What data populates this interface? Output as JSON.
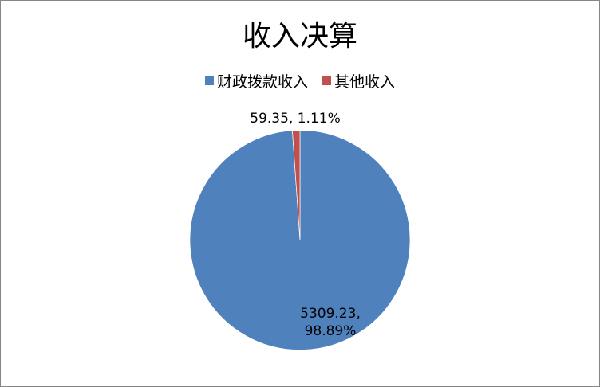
{
  "chart_data": {
    "type": "pie",
    "title": "收入决算",
    "legend_position": "top",
    "slices": [
      {
        "name": "财政拨款收入",
        "value": 5309.23,
        "percent": "98.89%",
        "label": "5309.23, 98.89%",
        "color": "#4F81BD"
      },
      {
        "name": "其他收入",
        "value": 59.35,
        "percent": "1.11%",
        "label": "59.35, 1.11%",
        "color": "#C0504D"
      }
    ]
  }
}
